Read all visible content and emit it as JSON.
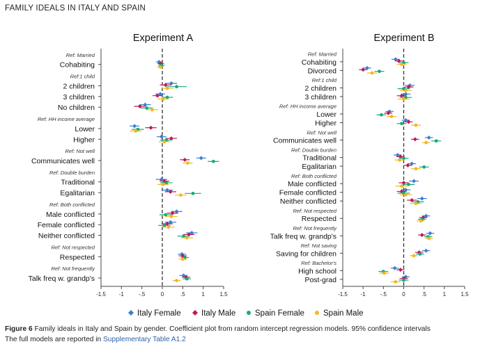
{
  "figure": {
    "header": "FAMILY IDEALS IN ITALY AND SPAIN",
    "caption_label": "Figure 6",
    "caption_text": " Family ideals in Italy and Spain by gender. Coefficient plot from random intercept regression models. 95% confidence intervals",
    "caption_line2_pre": "The full models are reported in ",
    "caption_link": "Supplementary Table A1.2"
  },
  "legend": [
    {
      "name": "Italy Female",
      "color": "#3b7fd0",
      "marker": "diamond"
    },
    {
      "name": "Italy Male",
      "color": "#c0185a",
      "marker": "diamond"
    },
    {
      "name": "Spain Female",
      "color": "#19a97b",
      "marker": "circle"
    },
    {
      "name": "Spain Male",
      "color": "#f2b820",
      "marker": "circle"
    }
  ],
  "chart_data": [
    {
      "type": "scatter",
      "title": "Experiment A",
      "xlim": [
        -1.5,
        1.5
      ],
      "xticks": [
        "-1.5",
        "-1",
        "-.5",
        "0",
        ".5",
        "1",
        "1.5"
      ],
      "reference_line": 0,
      "series_names": [
        "Italy Female",
        "Italy Male",
        "Spain Female",
        "Spain Male"
      ],
      "groups": [
        {
          "ref": "Ref: Married",
          "items": [
            {
              "label": "Cohabiting",
              "est": [
                -0.08,
                -0.04,
                -0.02,
                -0.05
              ],
              "ci": [
                0.08,
                0.08,
                0.08,
                0.08
              ]
            }
          ]
        },
        {
          "ref": "Ref:1 child",
          "items": [
            {
              "label": "2 children",
              "est": [
                0.22,
                0.08,
                0.35,
                0.12
              ],
              "ci": [
                0.14,
                0.14,
                0.25,
                0.15
              ]
            },
            {
              "label": "3 children",
              "est": [
                -0.05,
                -0.12,
                0.12,
                0.02
              ],
              "ci": [
                0.12,
                0.12,
                0.14,
                0.14
              ]
            },
            {
              "label": "No children",
              "est": [
                -0.42,
                -0.55,
                -0.38,
                -0.25
              ],
              "ci": [
                0.14,
                0.14,
                0.15,
                0.15
              ]
            }
          ]
        },
        {
          "ref": "Ref: HH income average",
          "items": [
            {
              "label": "Lower",
              "est": [
                -0.68,
                -0.28,
                -0.6,
                -0.65
              ],
              "ci": [
                0.12,
                0.14,
                0.15,
                0.14
              ]
            },
            {
              "label": "Higher",
              "est": [
                -0.02,
                0.22,
                0.1,
                0.05
              ],
              "ci": [
                0.12,
                0.14,
                0.15,
                0.14
              ]
            }
          ]
        },
        {
          "ref": "Ref: Not well",
          "items": [
            {
              "label": "Communicates well",
              "est": [
                0.95,
                0.55,
                1.25,
                0.62
              ],
              "ci": [
                0.12,
                0.12,
                0.14,
                0.12
              ]
            }
          ]
        },
        {
          "ref": "Ref: Double burden",
          "items": [
            {
              "label": "Traditional",
              "est": [
                -0.02,
                0.05,
                0.1,
                0.02
              ],
              "ci": [
                0.14,
                0.12,
                0.15,
                0.14
              ]
            },
            {
              "label": "Egalitarian",
              "est": [
                0.12,
                0.2,
                0.75,
                0.45
              ],
              "ci": [
                0.14,
                0.14,
                0.2,
                0.14
              ]
            }
          ]
        },
        {
          "ref": "Ref: Both conflicted",
          "items": [
            {
              "label": "Male conflicted",
              "est": [
                0.35,
                0.25,
                0.08,
                0.22
              ],
              "ci": [
                0.14,
                0.14,
                0.15,
                0.15
              ]
            },
            {
              "label": "Female conflicted",
              "est": [
                0.2,
                0.12,
                0.05,
                0.15
              ],
              "ci": [
                0.14,
                0.14,
                0.15,
                0.15
              ]
            },
            {
              "label": "Neither conflicted",
              "est": [
                0.72,
                0.65,
                0.52,
                0.6
              ],
              "ci": [
                0.14,
                0.14,
                0.15,
                0.15
              ]
            }
          ]
        },
        {
          "ref": "Ref: Not respected",
          "items": [
            {
              "label": "Respected",
              "est": [
                0.48,
                0.5,
                0.55,
                0.5
              ],
              "ci": [
                0.1,
                0.1,
                0.1,
                0.1
              ]
            }
          ]
        },
        {
          "ref": "Ref: Not frequently",
          "items": [
            {
              "label": "Talk freq w. grandp's",
              "est": [
                0.52,
                0.58,
                0.6,
                0.35
              ],
              "ci": [
                0.1,
                0.1,
                0.1,
                0.1
              ]
            }
          ]
        }
      ]
    },
    {
      "type": "scatter",
      "title": "Experiment B",
      "xlim": [
        -1.5,
        1.5
      ],
      "xticks": [
        "-1.5",
        "-1",
        "-.5",
        "0",
        ".5",
        "1",
        "1.5"
      ],
      "reference_line": 0,
      "series_names": [
        "Italy Female",
        "Italy Male",
        "Spain Female",
        "Spain Male"
      ],
      "groups": [
        {
          "ref": "Ref: Married",
          "items": [
            {
              "label": "Cohabiting",
              "est": [
                -0.2,
                -0.12,
                0.0,
                -0.05
              ],
              "ci": [
                0.1,
                0.1,
                0.12,
                0.12
              ]
            },
            {
              "label": "Divorced",
              "est": [
                -0.9,
                -1.0,
                -0.6,
                -0.78
              ],
              "ci": [
                0.1,
                0.1,
                0.12,
                0.12
              ]
            }
          ]
        },
        {
          "ref": "Ref:1 child",
          "items": [
            {
              "label": "2 children",
              "est": [
                0.15,
                0.12,
                0.0,
                0.05
              ],
              "ci": [
                0.12,
                0.12,
                0.15,
                0.15
              ]
            },
            {
              "label": "3 children",
              "est": [
                0.05,
                -0.05,
                0.05,
                0.0
              ],
              "ci": [
                0.12,
                0.12,
                0.15,
                0.15
              ]
            }
          ]
        },
        {
          "ref": "Ref: HH income average",
          "items": [
            {
              "label": "Lower",
              "est": [
                -0.35,
                -0.38,
                -0.55,
                -0.3
              ],
              "ci": [
                0.1,
                0.1,
                0.12,
                0.12
              ]
            },
            {
              "label": "Higher",
              "est": [
                0.05,
                0.12,
                -0.05,
                0.3
              ],
              "ci": [
                0.1,
                0.1,
                0.12,
                0.12
              ]
            }
          ]
        },
        {
          "ref": "Ref: Not well",
          "items": [
            {
              "label": "Communicates well",
              "est": [
                0.62,
                0.28,
                0.8,
                0.55
              ],
              "ci": [
                0.1,
                0.1,
                0.12,
                0.1
              ]
            }
          ]
        },
        {
          "ref": "Ref: Double burden",
          "items": [
            {
              "label": "Traditional",
              "est": [
                -0.15,
                -0.08,
                0.0,
                -0.1
              ],
              "ci": [
                0.1,
                0.1,
                0.12,
                0.12
              ]
            },
            {
              "label": "Egalitarian",
              "est": [
                0.2,
                0.1,
                0.5,
                0.3
              ],
              "ci": [
                0.1,
                0.1,
                0.12,
                0.12
              ]
            }
          ]
        },
        {
          "ref": "Ref: Both conflicted",
          "items": [
            {
              "label": "Male conflicted",
              "est": [
                0.25,
                0.0,
                0.12,
                -0.05
              ],
              "ci": [
                0.12,
                0.12,
                0.15,
                0.15
              ]
            },
            {
              "label": "Female conflicted",
              "est": [
                0.05,
                -0.05,
                0.0,
                0.05
              ],
              "ci": [
                0.12,
                0.12,
                0.15,
                0.15
              ]
            },
            {
              "label": "Neither conflicted",
              "est": [
                0.45,
                0.2,
                0.35,
                0.3
              ],
              "ci": [
                0.12,
                0.12,
                0.15,
                0.15
              ]
            }
          ]
        },
        {
          "ref": "Ref: Not respected",
          "items": [
            {
              "label": "Respected",
              "est": [
                0.55,
                0.48,
                0.45,
                0.42
              ],
              "ci": [
                0.1,
                0.1,
                0.1,
                0.1
              ]
            }
          ]
        },
        {
          "ref": "Ref: Not frequently",
          "items": [
            {
              "label": "Talk freq w. grandp's",
              "est": [
                0.65,
                0.45,
                0.6,
                0.62
              ],
              "ci": [
                0.1,
                0.1,
                0.1,
                0.1
              ]
            }
          ]
        },
        {
          "ref": "Ref: Not saving",
          "items": [
            {
              "label": "Saving for children",
              "est": [
                0.55,
                0.38,
                0.4,
                0.25
              ],
              "ci": [
                0.1,
                0.1,
                0.1,
                0.1
              ]
            }
          ]
        },
        {
          "ref": "Ref: Bachelor's",
          "items": [
            {
              "label": "High school",
              "est": [
                -0.22,
                -0.08,
                -0.5,
                -0.48
              ],
              "ci": [
                0.1,
                0.1,
                0.12,
                0.12
              ]
            },
            {
              "label": "Post-grad",
              "est": [
                0.05,
                0.0,
                0.0,
                -0.2
              ],
              "ci": [
                0.1,
                0.1,
                0.12,
                0.12
              ]
            }
          ]
        }
      ]
    }
  ]
}
